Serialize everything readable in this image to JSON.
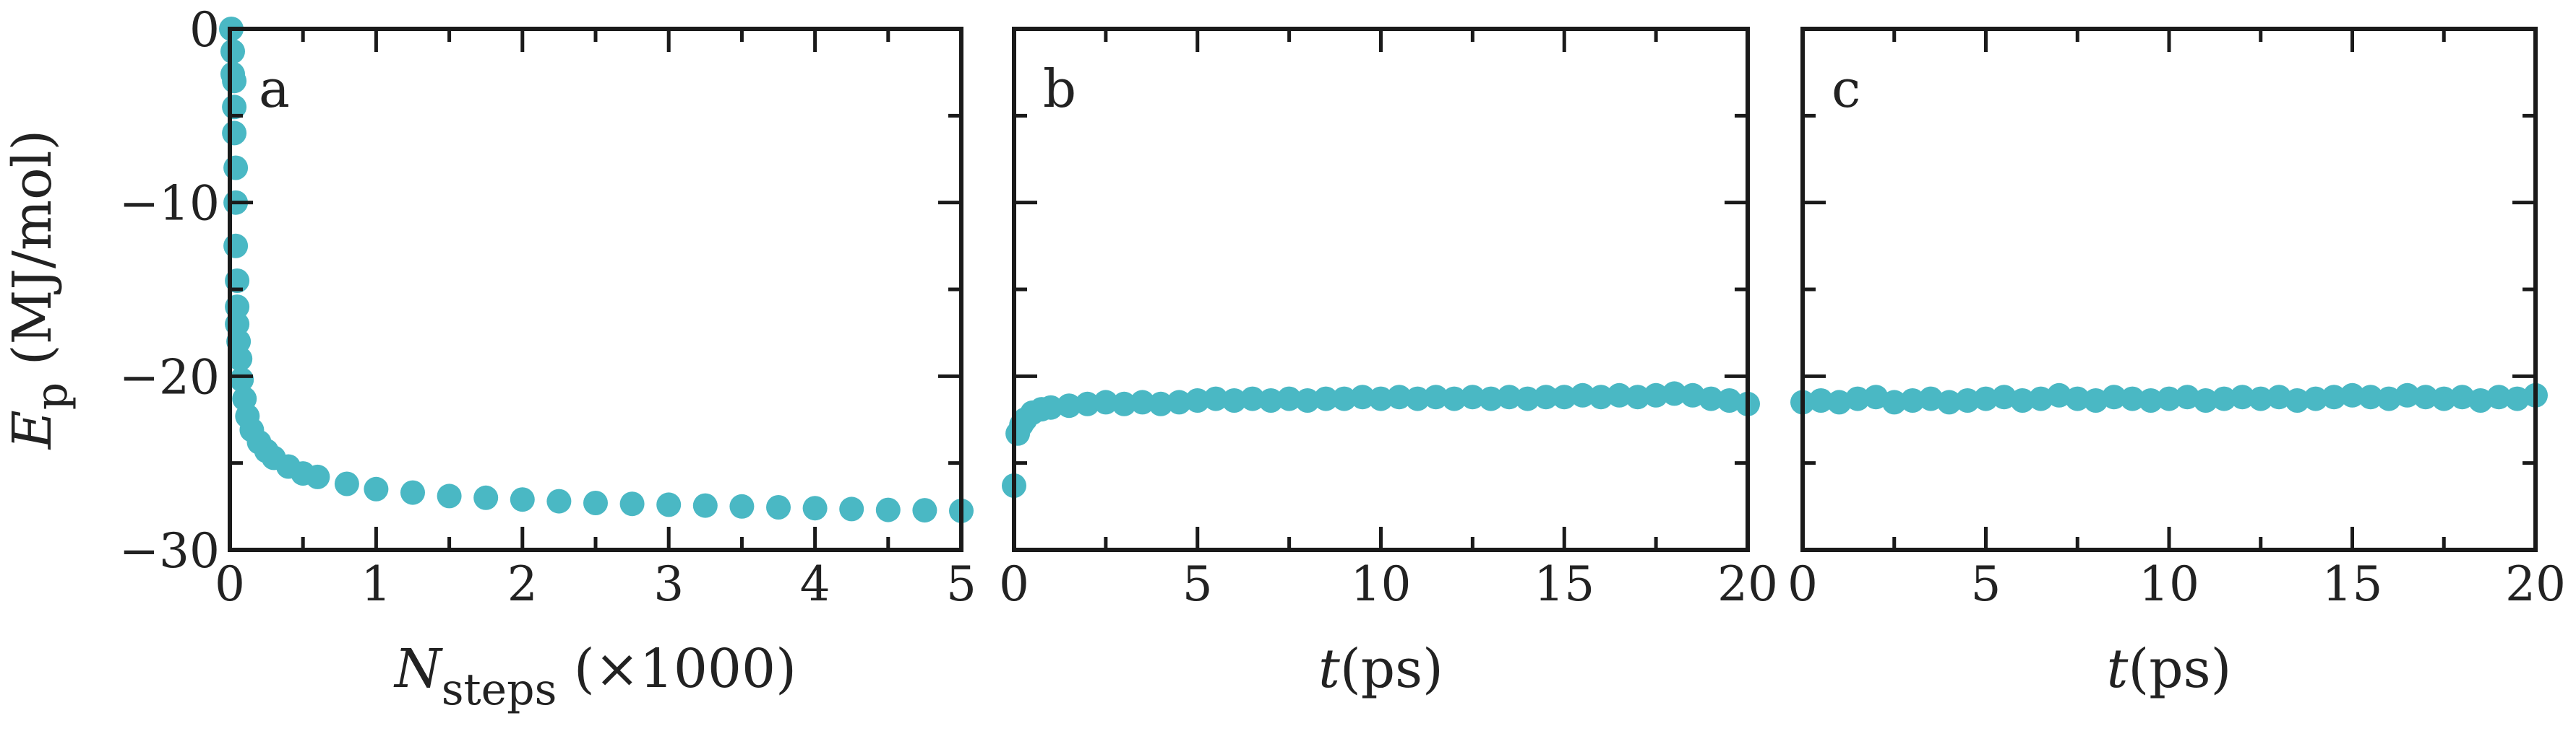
{
  "style": {
    "marker_color": "#4ab8c4",
    "axis_color": "#1a1a1a"
  },
  "chart_data": [
    {
      "type": "scatter",
      "panel_label": "a",
      "ylabel": {
        "main": "E",
        "sub": "p",
        "unit": " (MJ/mol)"
      },
      "xlabel": {
        "main": "N",
        "sub": "steps",
        "unit": " (×1000)"
      },
      "xlim": [
        0,
        5
      ],
      "ylim": [
        -30,
        0
      ],
      "xticks": [
        0,
        1,
        2,
        3,
        4,
        5
      ],
      "xtick_labels": [
        "0",
        "1",
        "2",
        "3",
        "4",
        "5"
      ],
      "yticks": [
        0,
        -10,
        -20,
        -30
      ],
      "ytick_labels": [
        "0",
        "−10",
        "−20",
        "−30"
      ],
      "series": [
        {
          "x": [
            0.01,
            0.02,
            0.02,
            0.03,
            0.03,
            0.03,
            0.04,
            0.04,
            0.04,
            0.05,
            0.05,
            0.05,
            0.06,
            0.07,
            0.08,
            0.1,
            0.12,
            0.15,
            0.2,
            0.25,
            0.3,
            0.4,
            0.5,
            0.6,
            0.8,
            1.0,
            1.25,
            1.5,
            1.75,
            2.0,
            2.25,
            2.5,
            2.75,
            3.0,
            3.25,
            3.5,
            3.75,
            4.0,
            4.25,
            4.5,
            4.75,
            5.0
          ],
          "y": [
            0,
            -1.3,
            -2.6,
            -3.0,
            -4.5,
            -6.0,
            -8.0,
            -10.0,
            -12.5,
            -14.5,
            -16.0,
            -17.0,
            -18.0,
            -19.0,
            -20.2,
            -21.3,
            -22.3,
            -23.1,
            -23.8,
            -24.3,
            -24.7,
            -25.2,
            -25.6,
            -25.8,
            -26.2,
            -26.5,
            -26.7,
            -26.9,
            -27.0,
            -27.1,
            -27.2,
            -27.3,
            -27.35,
            -27.4,
            -27.45,
            -27.5,
            -27.55,
            -27.6,
            -27.65,
            -27.7,
            -27.72,
            -27.75
          ]
        }
      ]
    },
    {
      "type": "scatter",
      "panel_label": "b",
      "xlabel": {
        "main": "t",
        "sub": "",
        "unit": "(ps)"
      },
      "xlim": [
        0,
        20
      ],
      "ylim": [
        -30,
        0
      ],
      "xticks": [
        0,
        5,
        10,
        15,
        20
      ],
      "xtick_labels": [
        "0",
        "5",
        "10",
        "15",
        "20"
      ],
      "yticks": [
        0,
        -10,
        -20,
        -30
      ],
      "series": [
        {
          "x": [
            0,
            0.1,
            0.2,
            0.3,
            0.5,
            0.75,
            1.0,
            1.5,
            2.0,
            2.5,
            3.0,
            3.5,
            4.0,
            4.5,
            5.0,
            5.5,
            6.0,
            6.5,
            7.0,
            7.5,
            8.0,
            8.5,
            9.0,
            9.5,
            10.0,
            10.5,
            11.0,
            11.5,
            12.0,
            12.5,
            13.0,
            13.5,
            14.0,
            14.5,
            15.0,
            15.5,
            16.0,
            16.5,
            17.0,
            17.5,
            18.0,
            18.5,
            19.0,
            19.5,
            20.0
          ],
          "y": [
            -26.3,
            -23.3,
            -22.8,
            -22.5,
            -22.1,
            -21.9,
            -21.8,
            -21.7,
            -21.6,
            -21.5,
            -21.6,
            -21.5,
            -21.6,
            -21.5,
            -21.4,
            -21.3,
            -21.4,
            -21.3,
            -21.4,
            -21.3,
            -21.4,
            -21.3,
            -21.3,
            -21.2,
            -21.3,
            -21.2,
            -21.3,
            -21.2,
            -21.3,
            -21.2,
            -21.3,
            -21.2,
            -21.3,
            -21.2,
            -21.2,
            -21.1,
            -21.2,
            -21.1,
            -21.2,
            -21.1,
            -21.0,
            -21.1,
            -21.3,
            -21.4,
            -21.6
          ]
        }
      ]
    },
    {
      "type": "scatter",
      "panel_label": "c",
      "xlabel": {
        "main": "t",
        "sub": "",
        "unit": "(ps)"
      },
      "xlim": [
        0,
        20
      ],
      "ylim": [
        -30,
        0
      ],
      "xticks": [
        0,
        5,
        10,
        15,
        20
      ],
      "xtick_labels": [
        "0",
        "5",
        "10",
        "15",
        "20"
      ],
      "yticks": [
        0,
        -10,
        -20,
        -30
      ],
      "series": [
        {
          "x": [
            0,
            0.5,
            1.0,
            1.5,
            2.0,
            2.5,
            3.0,
            3.5,
            4.0,
            4.5,
            5.0,
            5.5,
            6.0,
            6.5,
            7.0,
            7.5,
            8.0,
            8.5,
            9.0,
            9.5,
            10.0,
            10.5,
            11.0,
            11.5,
            12.0,
            12.5,
            13.0,
            13.5,
            14.0,
            14.5,
            15.0,
            15.5,
            16.0,
            16.5,
            17.0,
            17.5,
            18.0,
            18.5,
            19.0,
            19.5,
            20.0
          ],
          "y": [
            -21.5,
            -21.4,
            -21.5,
            -21.3,
            -21.2,
            -21.5,
            -21.4,
            -21.3,
            -21.5,
            -21.4,
            -21.3,
            -21.2,
            -21.4,
            -21.3,
            -21.1,
            -21.3,
            -21.4,
            -21.2,
            -21.3,
            -21.4,
            -21.3,
            -21.2,
            -21.4,
            -21.3,
            -21.2,
            -21.3,
            -21.2,
            -21.4,
            -21.3,
            -21.2,
            -21.1,
            -21.2,
            -21.3,
            -21.1,
            -21.2,
            -21.3,
            -21.2,
            -21.4,
            -21.2,
            -21.3,
            -21.1
          ]
        }
      ]
    }
  ]
}
